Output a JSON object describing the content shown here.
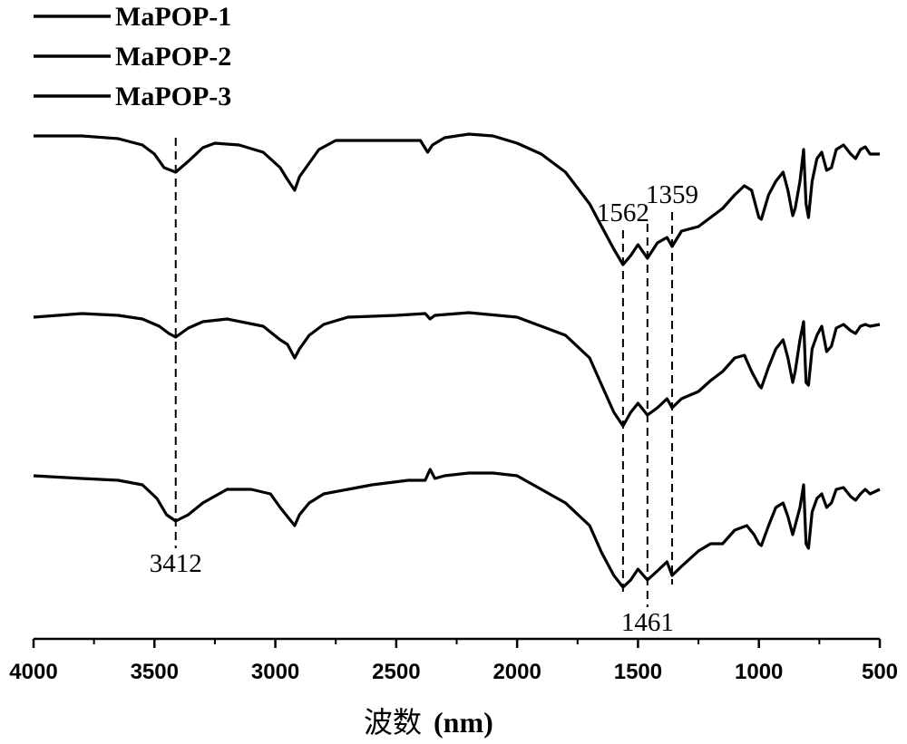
{
  "chart_data": {
    "type": "line",
    "title": "",
    "xlabel_main": "波数",
    "xlabel_unit": "(nm)",
    "xlim": [
      4000,
      500
    ],
    "x_ticks": [
      4000,
      3500,
      3000,
      2500,
      2000,
      1500,
      1000,
      500
    ],
    "x_tick_labels": [
      "4000",
      "3500",
      "3000",
      "2500",
      "2000",
      "1500",
      "1000",
      "500"
    ],
    "y_axis_shown": false,
    "legend_position": "top-left",
    "grid": false,
    "series": [
      {
        "name": "MaPOP-1",
        "points": [
          [
            4000,
            150
          ],
          [
            3800,
            150
          ],
          [
            3650,
            153
          ],
          [
            3550,
            160
          ],
          [
            3500,
            170
          ],
          [
            3460,
            185
          ],
          [
            3412,
            190
          ],
          [
            3360,
            178
          ],
          [
            3300,
            163
          ],
          [
            3250,
            158
          ],
          [
            3150,
            160
          ],
          [
            3050,
            168
          ],
          [
            2980,
            185
          ],
          [
            2950,
            198
          ],
          [
            2920,
            210
          ],
          [
            2900,
            195
          ],
          [
            2860,
            180
          ],
          [
            2820,
            165
          ],
          [
            2750,
            155
          ],
          [
            2600,
            155
          ],
          [
            2400,
            155
          ],
          [
            2370,
            168
          ],
          [
            2350,
            160
          ],
          [
            2300,
            152
          ],
          [
            2200,
            148
          ],
          [
            2100,
            150
          ],
          [
            2000,
            158
          ],
          [
            1900,
            170
          ],
          [
            1800,
            190
          ],
          [
            1700,
            225
          ],
          [
            1650,
            250
          ],
          [
            1600,
            275
          ],
          [
            1562,
            292
          ],
          [
            1530,
            282
          ],
          [
            1500,
            270
          ],
          [
            1461,
            285
          ],
          [
            1420,
            268
          ],
          [
            1380,
            262
          ],
          [
            1359,
            272
          ],
          [
            1320,
            255
          ],
          [
            1250,
            250
          ],
          [
            1200,
            240
          ],
          [
            1150,
            230
          ],
          [
            1100,
            215
          ],
          [
            1060,
            205
          ],
          [
            1030,
            210
          ],
          [
            1000,
            240
          ],
          [
            990,
            242
          ],
          [
            960,
            215
          ],
          [
            930,
            200
          ],
          [
            900,
            190
          ],
          [
            880,
            210
          ],
          [
            860,
            238
          ],
          [
            850,
            230
          ],
          [
            830,
            200
          ],
          [
            815,
            165
          ],
          [
            805,
            225
          ],
          [
            795,
            240
          ],
          [
            780,
            200
          ],
          [
            760,
            175
          ],
          [
            740,
            168
          ],
          [
            720,
            188
          ],
          [
            700,
            185
          ],
          [
            680,
            165
          ],
          [
            650,
            160
          ],
          [
            620,
            170
          ],
          [
            600,
            175
          ],
          [
            580,
            165
          ],
          [
            560,
            162
          ],
          [
            540,
            170
          ],
          [
            500,
            170
          ]
        ]
      },
      {
        "name": "MaPOP-2",
        "points": [
          [
            4000,
            350
          ],
          [
            3800,
            346
          ],
          [
            3650,
            348
          ],
          [
            3550,
            352
          ],
          [
            3480,
            360
          ],
          [
            3440,
            368
          ],
          [
            3412,
            372
          ],
          [
            3360,
            362
          ],
          [
            3300,
            355
          ],
          [
            3200,
            352
          ],
          [
            3050,
            360
          ],
          [
            2980,
            375
          ],
          [
            2950,
            380
          ],
          [
            2920,
            395
          ],
          [
            2900,
            385
          ],
          [
            2860,
            370
          ],
          [
            2800,
            358
          ],
          [
            2700,
            350
          ],
          [
            2500,
            348
          ],
          [
            2380,
            346
          ],
          [
            2360,
            352
          ],
          [
            2340,
            348
          ],
          [
            2200,
            345
          ],
          [
            2000,
            350
          ],
          [
            1900,
            360
          ],
          [
            1800,
            370
          ],
          [
            1700,
            395
          ],
          [
            1650,
            425
          ],
          [
            1600,
            455
          ],
          [
            1562,
            470
          ],
          [
            1530,
            455
          ],
          [
            1500,
            445
          ],
          [
            1461,
            458
          ],
          [
            1420,
            450
          ],
          [
            1380,
            440
          ],
          [
            1359,
            450
          ],
          [
            1320,
            440
          ],
          [
            1250,
            432
          ],
          [
            1200,
            420
          ],
          [
            1150,
            410
          ],
          [
            1100,
            395
          ],
          [
            1060,
            392
          ],
          [
            1030,
            410
          ],
          [
            1000,
            425
          ],
          [
            990,
            428
          ],
          [
            960,
            405
          ],
          [
            930,
            385
          ],
          [
            900,
            375
          ],
          [
            880,
            395
          ],
          [
            860,
            422
          ],
          [
            850,
            410
          ],
          [
            830,
            375
          ],
          [
            815,
            355
          ],
          [
            805,
            422
          ],
          [
            795,
            425
          ],
          [
            780,
            385
          ],
          [
            760,
            370
          ],
          [
            740,
            360
          ],
          [
            720,
            388
          ],
          [
            700,
            382
          ],
          [
            680,
            362
          ],
          [
            650,
            358
          ],
          [
            620,
            365
          ],
          [
            600,
            368
          ],
          [
            580,
            360
          ],
          [
            560,
            358
          ],
          [
            540,
            360
          ],
          [
            500,
            358
          ]
        ]
      },
      {
        "name": "MaPOP-3",
        "points": [
          [
            4000,
            525
          ],
          [
            3800,
            528
          ],
          [
            3650,
            530
          ],
          [
            3550,
            535
          ],
          [
            3490,
            550
          ],
          [
            3450,
            568
          ],
          [
            3412,
            575
          ],
          [
            3360,
            568
          ],
          [
            3300,
            555
          ],
          [
            3200,
            540
          ],
          [
            3100,
            540
          ],
          [
            3020,
            545
          ],
          [
            2980,
            560
          ],
          [
            2950,
            570
          ],
          [
            2920,
            580
          ],
          [
            2900,
            568
          ],
          [
            2860,
            555
          ],
          [
            2800,
            545
          ],
          [
            2700,
            540
          ],
          [
            2600,
            535
          ],
          [
            2450,
            530
          ],
          [
            2380,
            530
          ],
          [
            2360,
            518
          ],
          [
            2340,
            528
          ],
          [
            2300,
            525
          ],
          [
            2200,
            522
          ],
          [
            2100,
            522
          ],
          [
            2000,
            525
          ],
          [
            1900,
            540
          ],
          [
            1800,
            555
          ],
          [
            1700,
            580
          ],
          [
            1650,
            610
          ],
          [
            1600,
            635
          ],
          [
            1562,
            648
          ],
          [
            1530,
            640
          ],
          [
            1500,
            628
          ],
          [
            1461,
            640
          ],
          [
            1420,
            630
          ],
          [
            1380,
            620
          ],
          [
            1359,
            635
          ],
          [
            1320,
            625
          ],
          [
            1250,
            608
          ],
          [
            1200,
            600
          ],
          [
            1150,
            600
          ],
          [
            1100,
            585
          ],
          [
            1050,
            580
          ],
          [
            1020,
            590
          ],
          [
            1000,
            600
          ],
          [
            990,
            602
          ],
          [
            960,
            580
          ],
          [
            930,
            560
          ],
          [
            900,
            555
          ],
          [
            880,
            570
          ],
          [
            860,
            590
          ],
          [
            850,
            580
          ],
          [
            830,
            560
          ],
          [
            815,
            535
          ],
          [
            805,
            600
          ],
          [
            795,
            605
          ],
          [
            780,
            565
          ],
          [
            760,
            550
          ],
          [
            740,
            545
          ],
          [
            720,
            560
          ],
          [
            700,
            555
          ],
          [
            680,
            540
          ],
          [
            650,
            538
          ],
          [
            620,
            548
          ],
          [
            600,
            552
          ],
          [
            580,
            545
          ],
          [
            560,
            540
          ],
          [
            540,
            545
          ],
          [
            500,
            540
          ]
        ]
      }
    ],
    "annotations": [
      {
        "label": "3412",
        "x": 3412,
        "position": "below",
        "line_from_curve": 1,
        "line_to_curve": 3
      },
      {
        "label": "1562",
        "x": 1562,
        "position": "above",
        "line_from_curve": 1,
        "line_to_curve": 3
      },
      {
        "label": "1461",
        "x": 1461,
        "position": "below",
        "line_from_curve": 1,
        "line_to_curve": 3
      },
      {
        "label": "1359",
        "x": 1359,
        "position": "above",
        "line_from_curve": 1,
        "line_to_curve": 3
      }
    ]
  }
}
